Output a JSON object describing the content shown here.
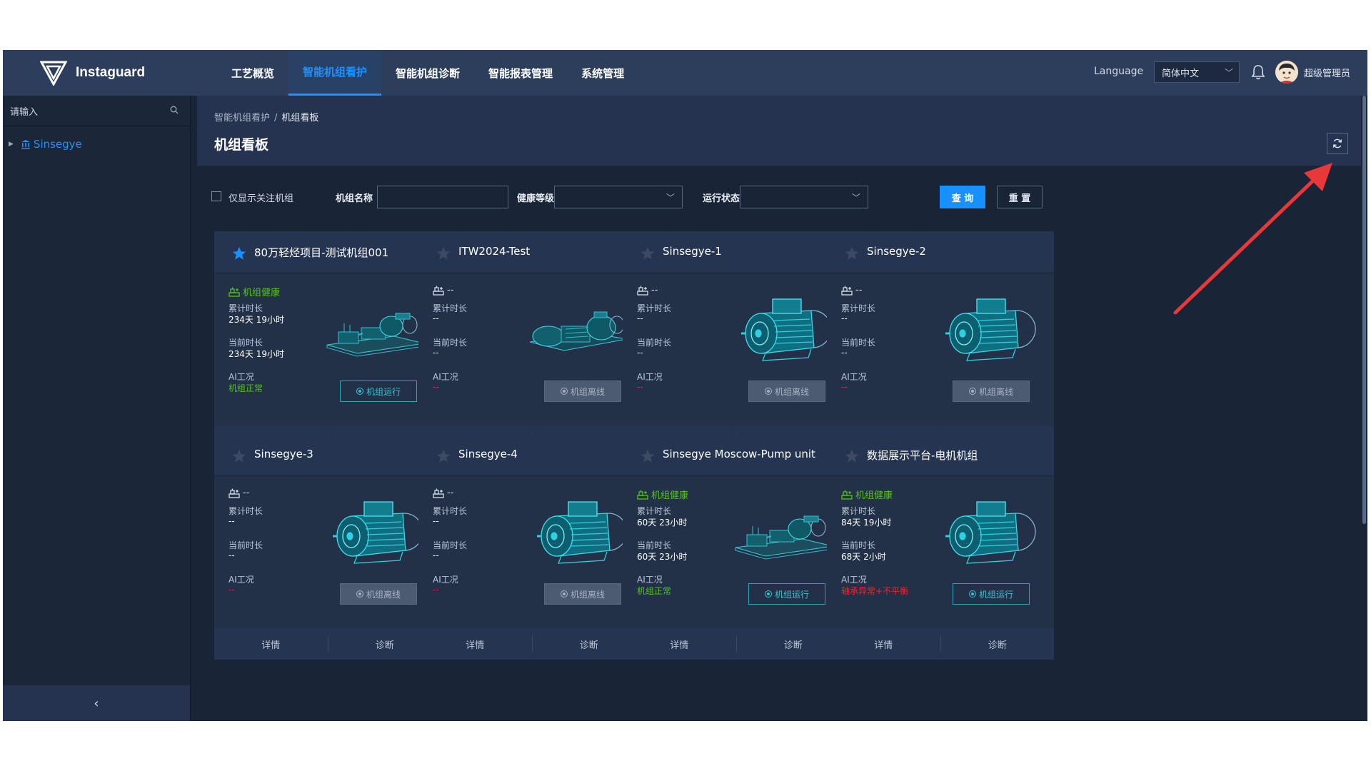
{
  "app": {
    "name": "Instaguard"
  },
  "nav": {
    "items": [
      {
        "label": "工艺概览",
        "active": false
      },
      {
        "label": "智能机组看护",
        "active": true
      },
      {
        "label": "智能机组诊断",
        "active": false
      },
      {
        "label": "智能报表管理",
        "active": false
      },
      {
        "label": "系统管理",
        "active": false
      }
    ]
  },
  "header": {
    "language_label": "Language",
    "language_value": "简体中文",
    "user_name": "超级管理员",
    "icons": [
      "logo-icon",
      "chevron-down-icon",
      "bell-icon",
      "avatar"
    ]
  },
  "sidebar": {
    "search_placeholder": "请输入",
    "tree": [
      {
        "label": "Sinsegye",
        "icon": "bank-icon"
      }
    ],
    "collapse_symbol": "‹"
  },
  "content": {
    "breadcrumb": [
      "智能机组看护",
      "机组看板"
    ],
    "breadcrumb_sep": "/",
    "title": "机组看板"
  },
  "filters": {
    "only_followed_label": "仅显示关注机组",
    "name_label": "机组名称",
    "name_value": "",
    "health_label": "健康等级",
    "health_value": "",
    "run_label": "运行状态",
    "run_value": "",
    "query_label": "查 询",
    "reset_label": "重 置"
  },
  "labels": {
    "cumulative": "累计时长",
    "current": "当前时长",
    "ai": "AI工况",
    "detail": "详情",
    "diagnose": "诊断"
  },
  "cards": [
    {
      "title": "80万轻烃项目-测试机组001",
      "starred": true,
      "status": "机组健康",
      "status_color": "#52c41a",
      "cumulative": "234天 19小时",
      "current": "234天 19小时",
      "ai": "机组正常",
      "ai_color": "#52c41a",
      "run": "机组运行",
      "online": true,
      "machine": "pump"
    },
    {
      "title": "ITW2024-Test",
      "starred": false,
      "status": "--",
      "status_color": "#d5dce8",
      "cumulative": "--",
      "current": "--",
      "ai": "--",
      "ai_color": "#f5222d",
      "run": "机组离线",
      "online": false,
      "machine": "pump2"
    },
    {
      "title": "Sinsegye-1",
      "starred": false,
      "status": "--",
      "status_color": "#d5dce8",
      "cumulative": "--",
      "current": "--",
      "ai": "--",
      "ai_color": "#f5222d",
      "run": "机组离线",
      "online": false,
      "machine": "motor"
    },
    {
      "title": "Sinsegye-2",
      "starred": false,
      "status": "--",
      "status_color": "#d5dce8",
      "cumulative": "--",
      "current": "--",
      "ai": "--",
      "ai_color": "#f5222d",
      "run": "机组离线",
      "online": false,
      "machine": "motor"
    },
    {
      "title": "Sinsegye-3",
      "starred": false,
      "status": "--",
      "status_color": "#d5dce8",
      "cumulative": "--",
      "current": "--",
      "ai": "--",
      "ai_color": "#f5222d",
      "run": "机组离线",
      "online": false,
      "machine": "motor"
    },
    {
      "title": "Sinsegye-4",
      "starred": false,
      "status": "--",
      "status_color": "#d5dce8",
      "cumulative": "--",
      "current": "--",
      "ai": "--",
      "ai_color": "#f5222d",
      "run": "机组离线",
      "online": false,
      "machine": "motor"
    },
    {
      "title": "Sinsegye Moscow-Pump unit",
      "starred": false,
      "status": "机组健康",
      "status_color": "#52c41a",
      "cumulative": "60天 23小时",
      "current": "60天 23小时",
      "ai": "机组正常",
      "ai_color": "#52c41a",
      "run": "机组运行",
      "online": true,
      "machine": "pump"
    },
    {
      "title": "数据展示平台-电机机组",
      "starred": false,
      "status": "机组健康",
      "status_color": "#52c41a",
      "cumulative": "84天 19小时",
      "current": "68天 2小时",
      "ai": "轴承异常+不平衡",
      "ai_color": "#f5222d",
      "run": "机组运行",
      "online": true,
      "machine": "motor"
    }
  ],
  "colors": {
    "accent": "#1890ff",
    "healthy": "#52c41a",
    "alert": "#f5222d",
    "online_button": "#35c7d4",
    "annotation_arrow": "#e8393a"
  }
}
